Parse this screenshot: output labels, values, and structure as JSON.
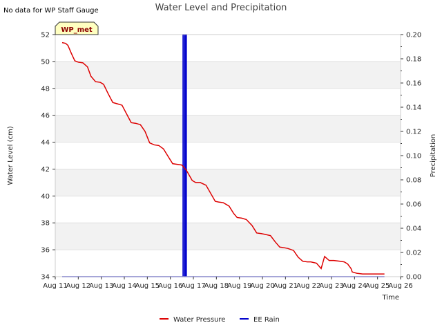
{
  "no_data_note": "No data for WP Staff Gauge",
  "station_badge": "WP_met",
  "colors": {
    "water_pressure": "#dd0000",
    "ee_rain": "#0000cc",
    "band": "#f2f2f2",
    "badge_bg": "#ffffc0"
  },
  "chart_data": {
    "type": "line",
    "title": "Water Level and Precipitation",
    "xlabel": "Time",
    "ylabel": "Water Level (cm)",
    "y2label": "Precipitation",
    "xlim": [
      "Aug 11",
      "Aug 26"
    ],
    "x_ticks": [
      "Aug 11",
      "Aug 12",
      "Aug 13",
      "Aug 14",
      "Aug 15",
      "Aug 16",
      "Aug 17",
      "Aug 18",
      "Aug 19",
      "Aug 20",
      "Aug 21",
      "Aug 22",
      "Aug 23",
      "Aug 24",
      "Aug 25",
      "Aug 26"
    ],
    "ylim": [
      34,
      52
    ],
    "y_ticks": [
      "34",
      "36",
      "38",
      "40",
      "42",
      "44",
      "46",
      "48",
      "50",
      "52"
    ],
    "y2lim": [
      0,
      0.2
    ],
    "y2_ticks": [
      "0.00",
      "0.02",
      "0.04",
      "0.06",
      "0.08",
      "0.10",
      "0.12",
      "0.14",
      "0.16",
      "0.18",
      "0.20"
    ],
    "legend_position": "bottom-center",
    "series": [
      {
        "name": "Water Pressure",
        "axis": "left",
        "x": [
          11.3,
          11.45,
          11.55,
          11.7,
          11.85,
          12.0,
          12.2,
          12.4,
          12.55,
          12.75,
          12.95,
          13.1,
          13.3,
          13.5,
          13.7,
          13.9,
          14.1,
          14.3,
          14.5,
          14.7,
          14.9,
          15.1,
          15.3,
          15.5,
          15.7,
          15.9,
          16.1,
          16.3,
          16.5,
          16.7,
          16.95,
          17.1,
          17.3,
          17.55,
          17.75,
          17.95,
          18.1,
          18.3,
          18.55,
          18.75,
          18.9,
          19.1,
          19.3,
          19.55,
          19.75,
          19.95,
          20.1,
          20.35,
          20.55,
          20.75,
          20.95,
          21.1,
          21.35,
          21.55,
          21.75,
          21.95,
          22.1,
          22.35,
          22.55,
          22.7,
          22.9,
          23.1,
          23.35,
          23.55,
          23.7,
          23.85,
          23.9,
          24.1,
          24.35,
          24.6,
          24.75,
          24.95,
          25.1,
          25.3
        ],
        "y": [
          51.4,
          51.35,
          51.2,
          50.6,
          50.05,
          49.95,
          49.9,
          49.6,
          48.9,
          48.5,
          48.45,
          48.3,
          47.6,
          46.95,
          46.85,
          46.75,
          46.1,
          45.45,
          45.4,
          45.3,
          44.8,
          43.95,
          43.8,
          43.75,
          43.5,
          42.95,
          42.4,
          42.35,
          42.3,
          41.9,
          41.15,
          41.0,
          41.0,
          40.8,
          40.2,
          39.6,
          39.55,
          39.5,
          39.25,
          38.7,
          38.4,
          38.35,
          38.25,
          37.8,
          37.25,
          37.2,
          37.15,
          37.05,
          36.6,
          36.2,
          36.15,
          36.1,
          35.95,
          35.45,
          35.15,
          35.1,
          35.1,
          35.0,
          34.6,
          35.5,
          35.2,
          35.2,
          35.15,
          35.1,
          34.95,
          34.6,
          34.35,
          34.25,
          34.2,
          34.2,
          34.2,
          34.2,
          34.2,
          34.2
        ]
      },
      {
        "name": "EE Rain",
        "axis": "right",
        "x": [
          11.3,
          16.55,
          16.55,
          16.6,
          16.6,
          16.65,
          16.65,
          16.7,
          16.7,
          25.3
        ],
        "y": [
          0.0,
          0.0,
          0.2,
          0.2,
          0.0,
          0.0,
          0.2,
          0.2,
          0.0,
          0.0
        ]
      }
    ]
  }
}
